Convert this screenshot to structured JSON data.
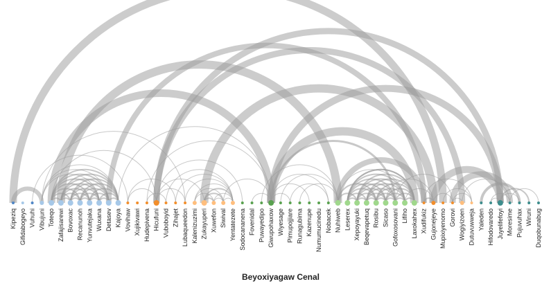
{
  "title": "Beyoxiyagaw Cenal",
  "palette": {
    "arc": "#9a9a9a",
    "blue": "#4f86c6",
    "lightblue": "#a6c8e8",
    "orange": "#f28e2b",
    "lightorange": "#ffbe7d",
    "green": "#59a14f",
    "lightgreen": "#a0d88c",
    "teal": "#3d8d8d"
  },
  "nodes": [
    {
      "label": "Kipeziq",
      "color": "blue",
      "size": 1
    },
    {
      "label": "Gifidabogeyo",
      "color": "lightblue",
      "size": 1
    },
    {
      "label": "Vuhuhi",
      "color": "blue",
      "size": 1
    },
    {
      "label": "Vibujuni",
      "color": "lightblue",
      "size": 2
    },
    {
      "label": "Toteqo",
      "color": "lightblue",
      "size": 3
    },
    {
      "label": "Zafajisarewi",
      "color": "lightblue",
      "size": 3
    },
    {
      "label": "Bovoxac",
      "color": "lightblue",
      "size": 3
    },
    {
      "label": "Recanunoh",
      "color": "lightblue",
      "size": 3
    },
    {
      "label": "Yunvutejaka",
      "color": "lightblue",
      "size": 3
    },
    {
      "label": "Wuxana",
      "color": "lightblue",
      "size": 3
    },
    {
      "label": "Detasev",
      "color": "lightblue",
      "size": 3
    },
    {
      "label": "Kajoya",
      "color": "lightblue",
      "size": 3
    },
    {
      "label": "Vovihaw",
      "color": "orange",
      "size": 1
    },
    {
      "label": "Xujikivawi",
      "color": "orange",
      "size": 1
    },
    {
      "label": "Hudepivena",
      "color": "orange",
      "size": 1
    },
    {
      "label": "Hicufuni",
      "color": "orange",
      "size": 3
    },
    {
      "label": "Vuboboyid",
      "color": "orange",
      "size": 1
    },
    {
      "label": "Zihajet",
      "color": "orange",
      "size": 1
    },
    {
      "label": "Lubaqueedon",
      "color": "orange",
      "size": 1
    },
    {
      "label": "Kalenizuzimi",
      "color": "lightorange",
      "size": 2
    },
    {
      "label": "Zukayuperi",
      "color": "lightorange",
      "size": 3
    },
    {
      "label": "Xuwefon",
      "color": "lightorange",
      "size": 2
    },
    {
      "label": "Siwival",
      "color": "lightorange",
      "size": 2
    },
    {
      "label": "Yentatezete",
      "color": "lightorange",
      "size": 2
    },
    {
      "label": "Sodocananena",
      "color": "green",
      "size": 1
    },
    {
      "label": "Fovenidal",
      "color": "green",
      "size": 1
    },
    {
      "label": "Puwayedipo",
      "color": "green",
      "size": 1
    },
    {
      "label": "Giwupohaxow",
      "color": "green",
      "size": 3
    },
    {
      "label": "Wiyesage",
      "color": "green",
      "size": 1
    },
    {
      "label": "Pimupojjiare",
      "color": "green",
      "size": 1
    },
    {
      "label": "Runagubima",
      "color": "green",
      "size": 1
    },
    {
      "label": "Kazenupe",
      "color": "green",
      "size": 1
    },
    {
      "label": "Numumucinedu",
      "color": "green",
      "size": 1
    },
    {
      "label": "Nobacek",
      "color": "green",
      "size": 1
    },
    {
      "label": "Nuhiweb",
      "color": "lightgreen",
      "size": 3
    },
    {
      "label": "Leserex",
      "color": "lightgreen",
      "size": 3
    },
    {
      "label": "Xepoyayuki",
      "color": "lightgreen",
      "size": 3
    },
    {
      "label": "Beqevapetuq",
      "color": "lightgreen",
      "size": 3
    },
    {
      "label": "Rosibu",
      "color": "lightgreen",
      "size": 3
    },
    {
      "label": "Sicaso",
      "color": "lightgreen",
      "size": 3
    },
    {
      "label": "Gofoxosovani",
      "color": "lightgreen",
      "size": 3
    },
    {
      "label": "Lifiho",
      "color": "lightgreen",
      "size": 3
    },
    {
      "label": "Laxokahex",
      "color": "lightgreen",
      "size": 3
    },
    {
      "label": "Xudifukiz",
      "color": "orange",
      "size": 1
    },
    {
      "label": "Gujonejeye",
      "color": "orange",
      "size": 2
    },
    {
      "label": "Mupixiyenomo",
      "color": "orange",
      "size": 1
    },
    {
      "label": "Gorovi",
      "color": "orange",
      "size": 1
    },
    {
      "label": "Wogiyizoen",
      "color": "lightorange",
      "size": 2
    },
    {
      "label": "Dutuvuwweja",
      "color": "lightorange",
      "size": 1
    },
    {
      "label": "Yaleden",
      "color": "teal",
      "size": 1
    },
    {
      "label": "Hifodovaredo",
      "color": "teal",
      "size": 1
    },
    {
      "label": "Juyelifefoyi",
      "color": "teal",
      "size": 3
    },
    {
      "label": "Moresime",
      "color": "teal",
      "size": 1
    },
    {
      "label": "Pujuvuhax",
      "color": "teal",
      "size": 1
    },
    {
      "label": "Wiruni",
      "color": "teal",
      "size": 1
    },
    {
      "label": "Duqobunabug",
      "color": "teal",
      "size": 1
    }
  ],
  "links": [
    {
      "s": 0,
      "t": 45,
      "w": 11
    },
    {
      "s": 4,
      "t": 27,
      "w": 11
    },
    {
      "s": 5,
      "t": 34,
      "w": 12
    },
    {
      "s": 10,
      "t": 43,
      "w": 8
    },
    {
      "s": 15,
      "t": 47,
      "w": 9
    },
    {
      "s": 15,
      "t": 51,
      "w": 9
    },
    {
      "s": 20,
      "t": 44,
      "w": 12
    },
    {
      "s": 27,
      "t": 51,
      "w": 10
    },
    {
      "s": 27,
      "t": 42,
      "w": 12
    },
    {
      "s": 27,
      "t": 40,
      "w": 3
    },
    {
      "s": 34,
      "t": 43,
      "w": 8
    },
    {
      "s": 46,
      "t": 52,
      "w": 9
    },
    {
      "s": 44,
      "t": 51,
      "w": 10
    },
    {
      "s": 49,
      "t": 53,
      "w": 4
    },
    {
      "s": 51,
      "t": 54,
      "w": 2
    },
    {
      "s": 0,
      "t": 3,
      "w": 6
    },
    {
      "s": 2,
      "t": 12,
      "w": 1
    },
    {
      "s": 3,
      "t": 18,
      "w": 1
    },
    {
      "s": 4,
      "t": 15,
      "w": 1
    },
    {
      "s": 11,
      "t": 27,
      "w": 1
    },
    {
      "s": 14,
      "t": 27,
      "w": 1
    },
    {
      "s": 15,
      "t": 18,
      "w": 1
    },
    {
      "s": 15,
      "t": 24,
      "w": 1
    },
    {
      "s": 16,
      "t": 23,
      "w": 1
    },
    {
      "s": 17,
      "t": 23,
      "w": 1
    },
    {
      "s": 18,
      "t": 23,
      "w": 1
    },
    {
      "s": 19,
      "t": 22,
      "w": 1
    },
    {
      "s": 20,
      "t": 23,
      "w": 2
    },
    {
      "s": 21,
      "t": 23,
      "w": 1
    },
    {
      "s": 22,
      "t": 27,
      "w": 1
    },
    {
      "s": 25,
      "t": 27,
      "w": 1
    },
    {
      "s": 26,
      "t": 34,
      "w": 1
    },
    {
      "s": 27,
      "t": 29,
      "w": 1
    },
    {
      "s": 27,
      "t": 31,
      "w": 1
    },
    {
      "s": 27,
      "t": 33,
      "w": 1
    },
    {
      "s": 28,
      "t": 34,
      "w": 1
    },
    {
      "s": 30,
      "t": 34,
      "w": 1
    },
    {
      "s": 34,
      "t": 36,
      "w": 2
    },
    {
      "s": 34,
      "t": 38,
      "w": 2
    },
    {
      "s": 34,
      "t": 41,
      "w": 1
    },
    {
      "s": 35,
      "t": 42,
      "w": 2
    },
    {
      "s": 36,
      "t": 40,
      "w": 2
    },
    {
      "s": 37,
      "t": 42,
      "w": 2
    },
    {
      "s": 38,
      "t": 42,
      "w": 2
    },
    {
      "s": 39,
      "t": 44,
      "w": 1
    },
    {
      "s": 41,
      "t": 44,
      "w": 1
    },
    {
      "s": 43,
      "t": 48,
      "w": 1
    },
    {
      "s": 45,
      "t": 48,
      "w": 1
    },
    {
      "s": 46,
      "t": 48,
      "w": 1
    },
    {
      "s": 47,
      "t": 52,
      "w": 1
    },
    {
      "s": 50,
      "t": 52,
      "w": 1
    },
    {
      "s": 52,
      "t": 55,
      "w": 1
    },
    {
      "s": 15,
      "t": 20,
      "w": 1
    },
    {
      "s": 12,
      "t": 17,
      "w": 1
    },
    {
      "s": 29,
      "t": 33,
      "w": 1
    },
    {
      "s": 40,
      "t": 46,
      "w": 1
    },
    {
      "s": 3,
      "t": 11,
      "w": 1
    },
    {
      "s": 4,
      "t": 11,
      "w": 2
    },
    {
      "s": 5,
      "t": 11,
      "w": 2
    },
    {
      "s": 6,
      "t": 11,
      "w": 2
    },
    {
      "s": 7,
      "t": 11,
      "w": 2
    },
    {
      "s": 8,
      "t": 11,
      "w": 2
    },
    {
      "s": 9,
      "t": 11,
      "w": 2
    },
    {
      "s": 10,
      "t": 11,
      "w": 2
    },
    {
      "s": 3,
      "t": 10,
      "w": 1
    },
    {
      "s": 4,
      "t": 10,
      "w": 2
    },
    {
      "s": 5,
      "t": 10,
      "w": 2
    },
    {
      "s": 6,
      "t": 10,
      "w": 2
    },
    {
      "s": 7,
      "t": 10,
      "w": 2
    },
    {
      "s": 8,
      "t": 10,
      "w": 2
    },
    {
      "s": 9,
      "t": 10,
      "w": 2
    },
    {
      "s": 3,
      "t": 9,
      "w": 1
    },
    {
      "s": 4,
      "t": 9,
      "w": 2
    },
    {
      "s": 5,
      "t": 9,
      "w": 2
    },
    {
      "s": 6,
      "t": 9,
      "w": 2
    },
    {
      "s": 7,
      "t": 9,
      "w": 2
    },
    {
      "s": 8,
      "t": 9,
      "w": 2
    },
    {
      "s": 4,
      "t": 8,
      "w": 2
    },
    {
      "s": 5,
      "t": 8,
      "w": 2
    },
    {
      "s": 6,
      "t": 8,
      "w": 2
    },
    {
      "s": 7,
      "t": 8,
      "w": 2
    },
    {
      "s": 4,
      "t": 7,
      "w": 2
    },
    {
      "s": 5,
      "t": 7,
      "w": 2
    },
    {
      "s": 6,
      "t": 7,
      "w": 2
    },
    {
      "s": 4,
      "t": 6,
      "w": 2
    },
    {
      "s": 5,
      "t": 6,
      "w": 2
    },
    {
      "s": 4,
      "t": 5,
      "w": 2
    },
    {
      "s": 35,
      "t": 42,
      "w": 2
    },
    {
      "s": 36,
      "t": 42,
      "w": 2
    },
    {
      "s": 37,
      "t": 41,
      "w": 2
    },
    {
      "s": 38,
      "t": 41,
      "w": 2
    },
    {
      "s": 39,
      "t": 42,
      "w": 2
    },
    {
      "s": 40,
      "t": 42,
      "w": 2
    },
    {
      "s": 41,
      "t": 42,
      "w": 2
    },
    {
      "s": 35,
      "t": 41,
      "w": 2
    },
    {
      "s": 36,
      "t": 41,
      "w": 2
    },
    {
      "s": 39,
      "t": 41,
      "w": 2
    },
    {
      "s": 40,
      "t": 41,
      "w": 2
    },
    {
      "s": 35,
      "t": 40,
      "w": 2
    },
    {
      "s": 37,
      "t": 40,
      "w": 2
    },
    {
      "s": 38,
      "t": 40,
      "w": 2
    },
    {
      "s": 39,
      "t": 40,
      "w": 2
    },
    {
      "s": 35,
      "t": 39,
      "w": 2
    },
    {
      "s": 36,
      "t": 39,
      "w": 2
    },
    {
      "s": 37,
      "t": 39,
      "w": 2
    },
    {
      "s": 38,
      "t": 39,
      "w": 2
    },
    {
      "s": 35,
      "t": 38,
      "w": 2
    },
    {
      "s": 36,
      "t": 38,
      "w": 2
    },
    {
      "s": 37,
      "t": 38,
      "w": 2
    },
    {
      "s": 35,
      "t": 37,
      "w": 2
    },
    {
      "s": 36,
      "t": 37,
      "w": 2
    },
    {
      "s": 35,
      "t": 36,
      "w": 2
    },
    {
      "s": 19,
      "t": 23,
      "w": 1
    },
    {
      "s": 20,
      "t": 22,
      "w": 2
    },
    {
      "s": 20,
      "t": 21,
      "w": 2
    },
    {
      "s": 21,
      "t": 22,
      "w": 1
    },
    {
      "s": 19,
      "t": 21,
      "w": 1
    },
    {
      "s": 22,
      "t": 23,
      "w": 1
    },
    {
      "s": 43,
      "t": 44,
      "w": 2
    },
    {
      "s": 44,
      "t": 46,
      "w": 1
    },
    {
      "s": 46,
      "t": 47,
      "w": 1
    },
    {
      "s": 50,
      "t": 51,
      "w": 1
    },
    {
      "s": 51,
      "t": 53,
      "w": 1
    },
    {
      "s": 14,
      "t": 16,
      "w": 1
    },
    {
      "s": 12,
      "t": 15,
      "w": 1
    }
  ]
}
